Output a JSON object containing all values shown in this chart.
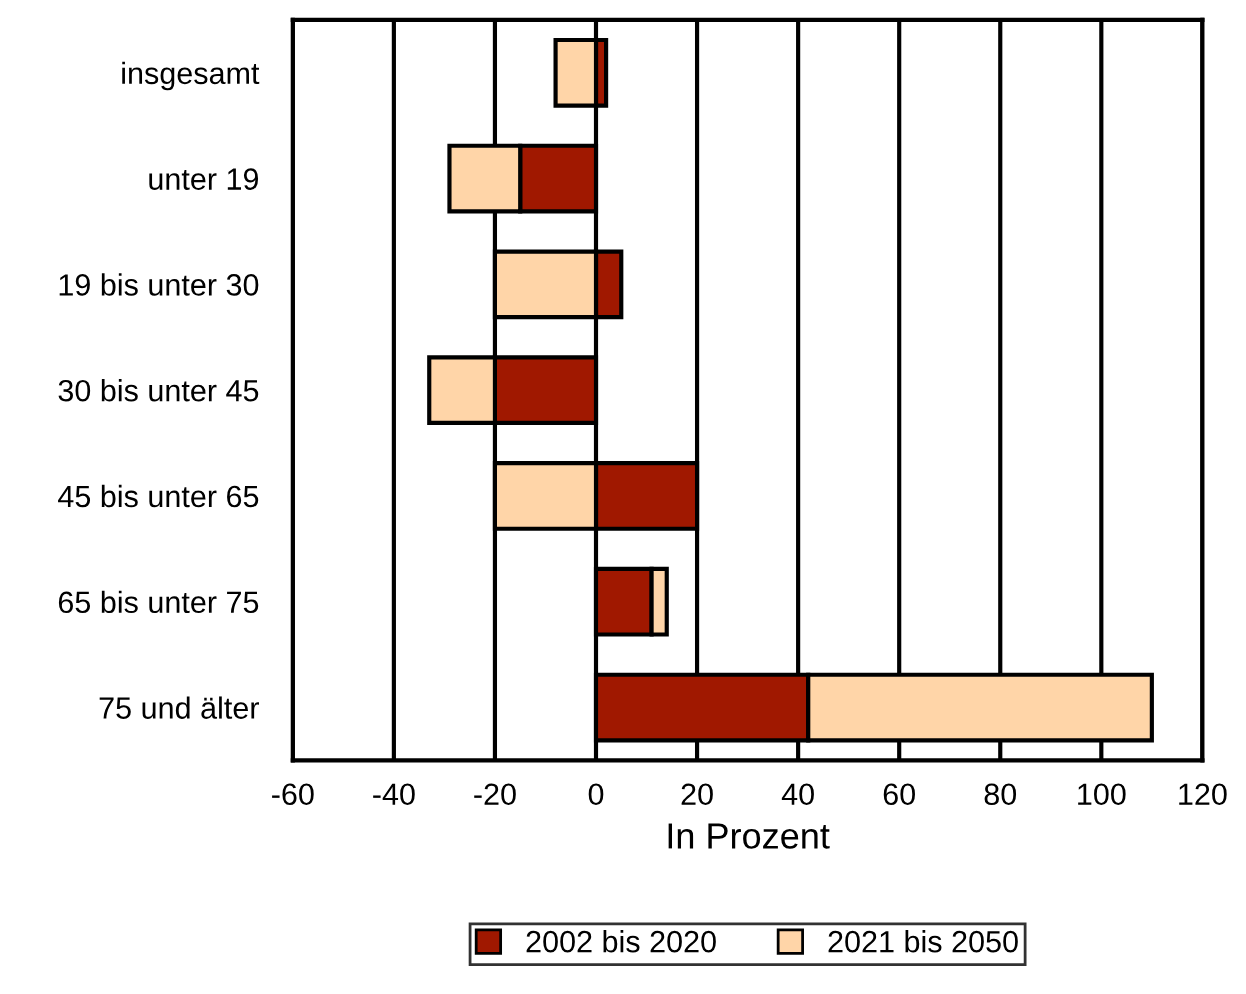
{
  "chart_data": {
    "type": "bar",
    "orientation": "horizontal",
    "stacked": true,
    "categories": [
      "insgesamt",
      "unter 19",
      "19 bis unter 30",
      "30 bis unter 45",
      "45 bis unter 65",
      "65 bis unter 75",
      "75 und älter"
    ],
    "series": [
      {
        "name": "2002 bis 2020",
        "color": "#a01800",
        "values": [
          2,
          -15,
          5,
          -20,
          20,
          11,
          42
        ]
      },
      {
        "name": "2021 bis 2050",
        "color": "#ffd5a8",
        "values": [
          -8,
          -14,
          -20,
          -13,
          -20,
          3,
          68
        ]
      }
    ],
    "xlabel": "In Prozent",
    "xlim": [
      -60,
      120
    ],
    "xticks": [
      -60,
      -40,
      -20,
      0,
      20,
      40,
      60,
      80,
      100,
      120
    ],
    "grid": "x",
    "legend": "bottom"
  }
}
